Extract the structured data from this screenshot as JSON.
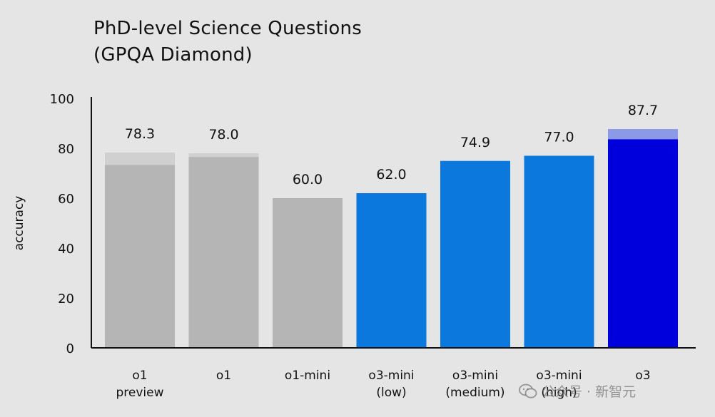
{
  "chart_data": {
    "type": "bar",
    "title_lines": [
      "PhD-level Science Questions",
      "(GPQA Diamond)"
    ],
    "ylabel": "accuracy",
    "xlabel": "",
    "ylim": [
      0,
      100
    ],
    "yticks": [
      0,
      20,
      40,
      60,
      80,
      100
    ],
    "categories": [
      [
        "o1",
        "preview"
      ],
      [
        "o1"
      ],
      [
        "o1-mini"
      ],
      [
        "o3-mini",
        "(low)"
      ],
      [
        "o3-mini",
        "(medium)"
      ],
      [
        "o3-mini",
        "(high)"
      ],
      [
        "o3"
      ]
    ],
    "values": [
      78.3,
      78.0,
      60.0,
      62.0,
      74.9,
      77.0,
      87.7
    ],
    "value_labels": [
      "78.3",
      "78.0",
      "60.0",
      "62.0",
      "74.9",
      "77.0",
      "87.7"
    ],
    "base_values": [
      73.3,
      76.5,
      60.0,
      62.0,
      74.9,
      77.0,
      83.6
    ],
    "colors": {
      "o1_family": "#b5b5b5",
      "o1_family_extension": "#d0d0d0",
      "o3_mini": "#0a78dc",
      "o3": "#0000dd",
      "o3_extension": "#8c99e6",
      "axis": "#111111",
      "background": "#e5e5e5"
    },
    "bar_colors": [
      "o1_family",
      "o1_family",
      "o1_family",
      "o3_mini",
      "o3_mini",
      "o3_mini",
      "o3"
    ],
    "ext_colors": [
      "o1_family_extension",
      "o1_family_extension",
      "o1_family_extension",
      "o3_mini",
      "o3_mini",
      "o3_mini",
      "o3_extension"
    ],
    "grid": false,
    "legend": "none"
  },
  "watermark": {
    "icon": "wechat-icon",
    "text": "公众号 · 新智元"
  }
}
